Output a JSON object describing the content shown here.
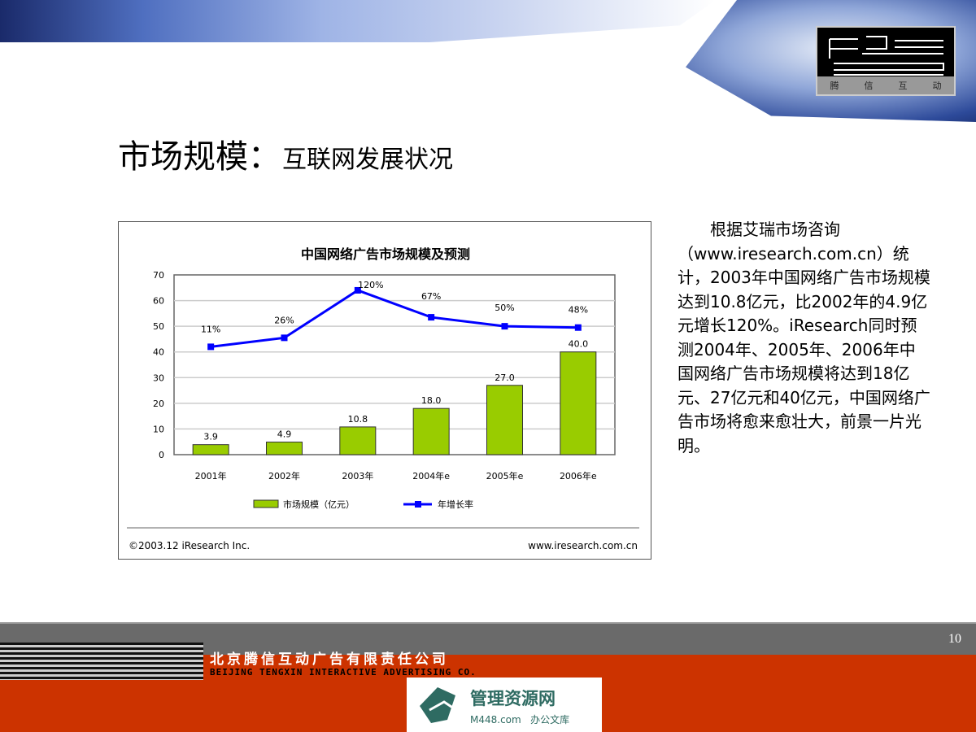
{
  "slide": {
    "title": "市场规模：",
    "subtitle": "互联网发展状况",
    "page_number": "10",
    "logo_text": [
      "腾",
      "信",
      "互",
      "动"
    ],
    "body_text": "根据艾瑞市场咨询（www.iresearch.com.cn）统计，2003年中国网络广告市场规模达到10.8亿元，比2002年的4.9亿元增长120%。iResearch同时预测2004年、2005年、2006年中国网络广告市场规模将达到18亿元、27亿元和40亿元，中国网络广告市场将愈来愈壮大，前景一片光明。",
    "company_cn": "北京腾信互动广告有限责任公司",
    "company_en": "BEIJING TENGXIN INTERACTIVE ADVERTISING CO.",
    "watermark": {
      "name": "管理资源网",
      "site": "M448.com",
      "tag": "办公文库"
    }
  },
  "chart_data": {
    "type": "bar+line",
    "title": "中国网络广告市场规模及预测",
    "categories": [
      "2001年",
      "2002年",
      "2003年",
      "2004年e",
      "2005年e",
      "2006年e"
    ],
    "ylim": [
      0,
      70
    ],
    "yticks": [
      0,
      10,
      20,
      30,
      40,
      50,
      60,
      70
    ],
    "grid": true,
    "legend_placement": "bottom",
    "series": [
      {
        "name": "市场规模（亿元）",
        "type": "bar",
        "color": "#99cc00",
        "values": [
          3.9,
          4.9,
          10.8,
          18.0,
          27.0,
          40.0
        ],
        "labels": [
          "3.9",
          "4.9",
          "10.8",
          "18.0",
          "27.0",
          "40.0"
        ]
      },
      {
        "name": "年增长率",
        "type": "line",
        "color": "#0000ff",
        "values": [
          42,
          45.5,
          64,
          53.5,
          50,
          49.5
        ],
        "labels": [
          "11%",
          "26%",
          "120%",
          "67%",
          "50%",
          "48%"
        ]
      }
    ],
    "source": "©2003.12 iResearch Inc.",
    "url": "www.iresearch.com.cn"
  }
}
